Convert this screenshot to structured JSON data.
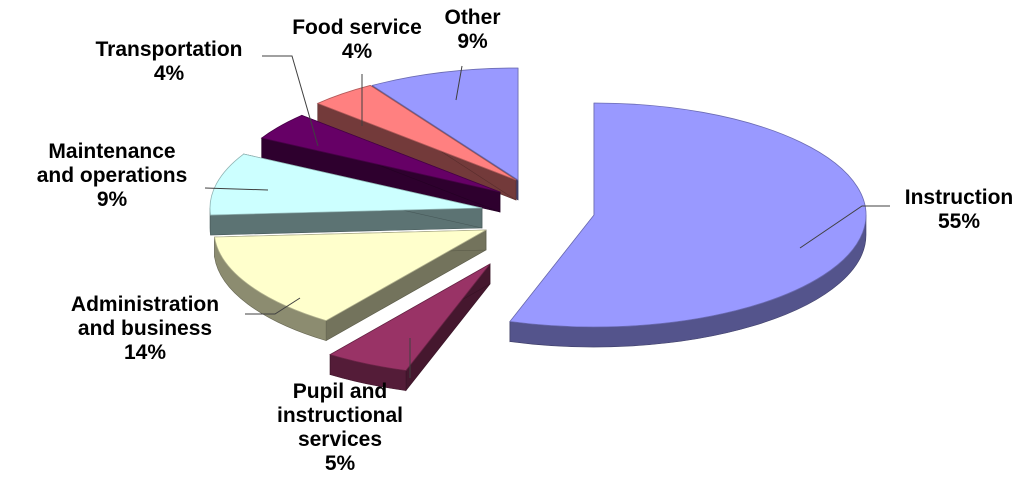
{
  "chart_data": {
    "type": "pie",
    "title": "",
    "style": "3d-exploded",
    "legend": "none",
    "slices": [
      {
        "key": "instruction",
        "label_lines": [
          "Instruction"
        ],
        "value_label": "55%",
        "value": 55,
        "color": "#9999FF"
      },
      {
        "key": "pupil",
        "label_lines": [
          "Pupil and",
          "instructional",
          "services"
        ],
        "value_label": "5%",
        "value": 5,
        "color": "#993366"
      },
      {
        "key": "admin",
        "label_lines": [
          "Administration",
          "and business"
        ],
        "value_label": "14%",
        "value": 14,
        "color": "#FFFFCC"
      },
      {
        "key": "maint",
        "label_lines": [
          "Maintenance",
          "and operations"
        ],
        "value_label": "9%",
        "value": 9,
        "color": "#CCFFFF"
      },
      {
        "key": "transport",
        "label_lines": [
          "Transportation"
        ],
        "value_label": "4%",
        "value": 4,
        "color": "#660066"
      },
      {
        "key": "food",
        "label_lines": [
          "Food service"
        ],
        "value_label": "4%",
        "value": 4,
        "color": "#FF8080"
      },
      {
        "key": "other",
        "label_lines": [
          "Other"
        ],
        "value_label": "9%",
        "value": 9,
        "color": "#9999FF"
      }
    ]
  }
}
